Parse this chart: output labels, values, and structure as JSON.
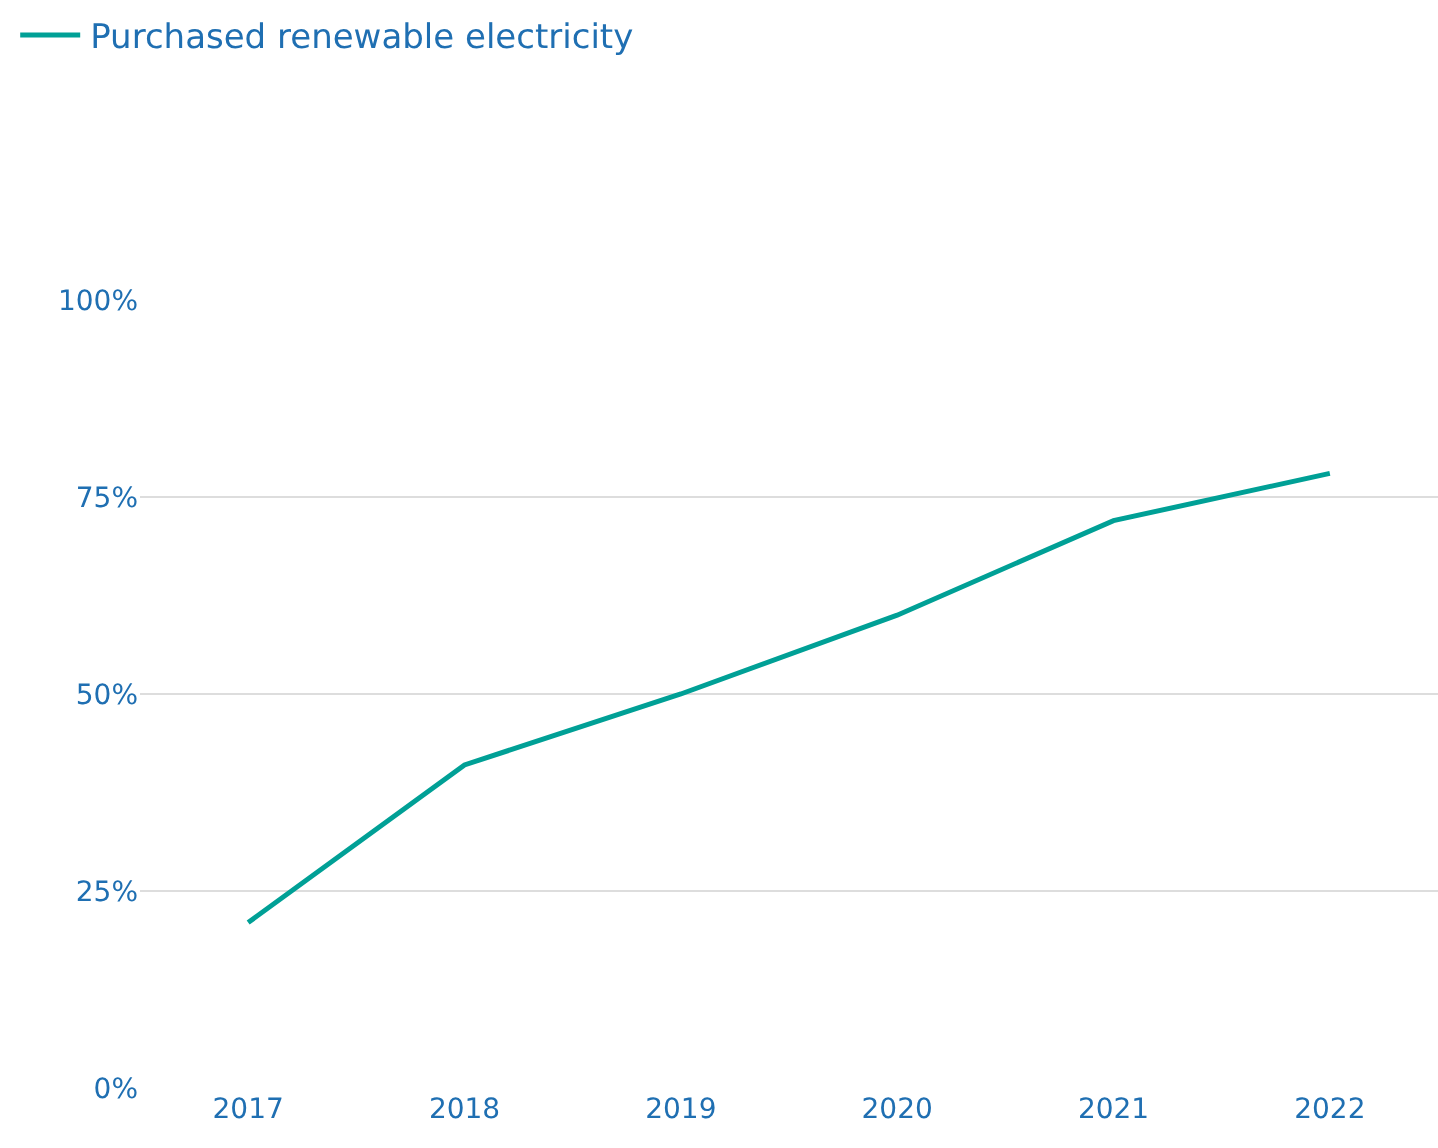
{
  "chart_data": {
    "type": "line",
    "categories": [
      "2017",
      "2018",
      "2019",
      "2020",
      "2021",
      "2022"
    ],
    "series": [
      {
        "name": "Purchased renewable electricity",
        "color": "#00a096",
        "values": [
          21,
          41,
          50,
          60,
          72,
          78
        ]
      }
    ],
    "ylim": [
      0,
      100
    ],
    "yticks": [
      {
        "value": 0,
        "label": "0%"
      },
      {
        "value": 25,
        "label": "25%"
      },
      {
        "value": 50,
        "label": "50%"
      },
      {
        "value": 75,
        "label": "75%"
      },
      {
        "value": 100,
        "label": "100%"
      }
    ],
    "grid": "y",
    "legend": "top left",
    "marker": "none",
    "line_style": "solid"
  }
}
